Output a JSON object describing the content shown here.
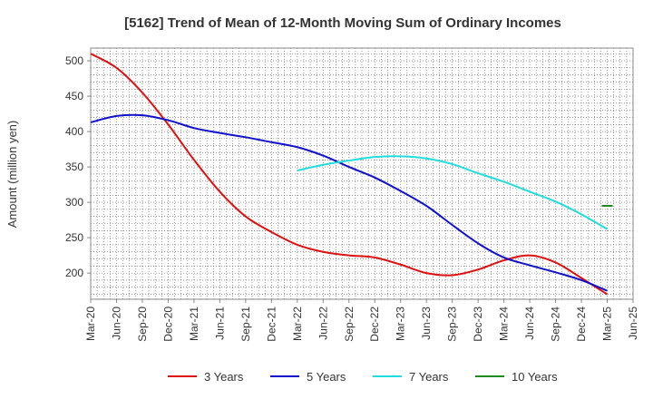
{
  "chart_data": {
    "type": "line",
    "title": "[5162]  Trend of Mean of 12-Month Moving Sum of Ordinary Incomes",
    "xlabel": "",
    "ylabel": "Amount (million yen)",
    "ylim": [
      163,
      518
    ],
    "yticks": [
      200,
      250,
      300,
      350,
      400,
      450,
      500
    ],
    "categories": [
      "Mar-20",
      "Jun-20",
      "Sep-20",
      "Dec-20",
      "Mar-21",
      "Jun-21",
      "Sep-21",
      "Dec-21",
      "Mar-22",
      "Jun-22",
      "Sep-22",
      "Dec-22",
      "Mar-23",
      "Jun-23",
      "Sep-23",
      "Dec-23",
      "Mar-24",
      "Jun-24",
      "Sep-24",
      "Dec-24",
      "Mar-25",
      "Jun-25"
    ],
    "grid": true,
    "legend_position": "bottom",
    "series": [
      {
        "name": "3 Years",
        "color": "#dd1111",
        "values": [
          510,
          490,
          455,
          410,
          360,
          315,
          280,
          258,
          240,
          230,
          225,
          222,
          212,
          200,
          197,
          205,
          218,
          225,
          215,
          193,
          170,
          null
        ]
      },
      {
        "name": "5 Years",
        "color": "#1111cc",
        "values": [
          413,
          422,
          423,
          416,
          405,
          398,
          392,
          385,
          378,
          366,
          350,
          335,
          316,
          295,
          268,
          242,
          222,
          211,
          201,
          190,
          175,
          null
        ]
      },
      {
        "name": "7 Years",
        "color": "#22dddd",
        "values": [
          null,
          null,
          null,
          null,
          null,
          null,
          null,
          null,
          345,
          353,
          359,
          364,
          365,
          362,
          354,
          341,
          329,
          315,
          301,
          283,
          262,
          null
        ]
      },
      {
        "name": "10 Years",
        "color": "#228822",
        "values": [
          null,
          null,
          null,
          null,
          null,
          null,
          null,
          null,
          null,
          null,
          null,
          null,
          null,
          null,
          null,
          null,
          null,
          null,
          null,
          null,
          295,
          null
        ]
      }
    ]
  }
}
